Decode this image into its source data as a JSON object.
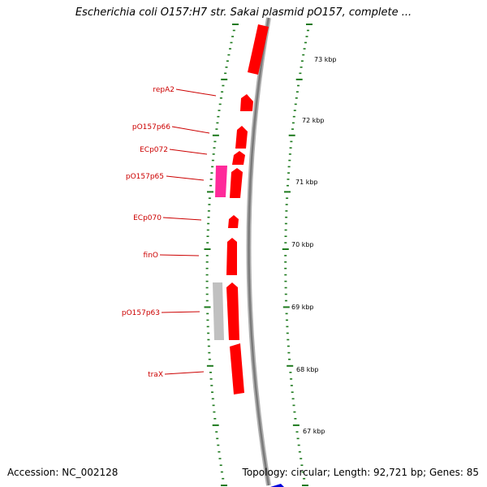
{
  "title": "Escherichia coli O157:H7 str. Sakai plasmid pO157, complete ...",
  "footer": {
    "accession": "Accession: NC_002128",
    "topology": "Topology: circular; Length: 92,721 bp; Genes: 85"
  },
  "colors": {
    "gene": "#ff0000",
    "gene_magenta": "#ff2a9a",
    "gene_gray": "#c0c0c0",
    "backbone": "#8a8a8a",
    "ticks": "#1e7a1e",
    "label": "#cc0000",
    "blue_marker": "#0000dd"
  },
  "scale_labels": [
    "73 kbp",
    "72 kbp",
    "71 kbp",
    "70 kbp",
    "69 kbp",
    "68 kbp",
    "67 kbp"
  ],
  "gene_labels": [
    "repA2",
    "pO157p66",
    "ECp072",
    "pO157p65",
    "ECp070",
    "finO",
    "pO157p63",
    "traX"
  ]
}
